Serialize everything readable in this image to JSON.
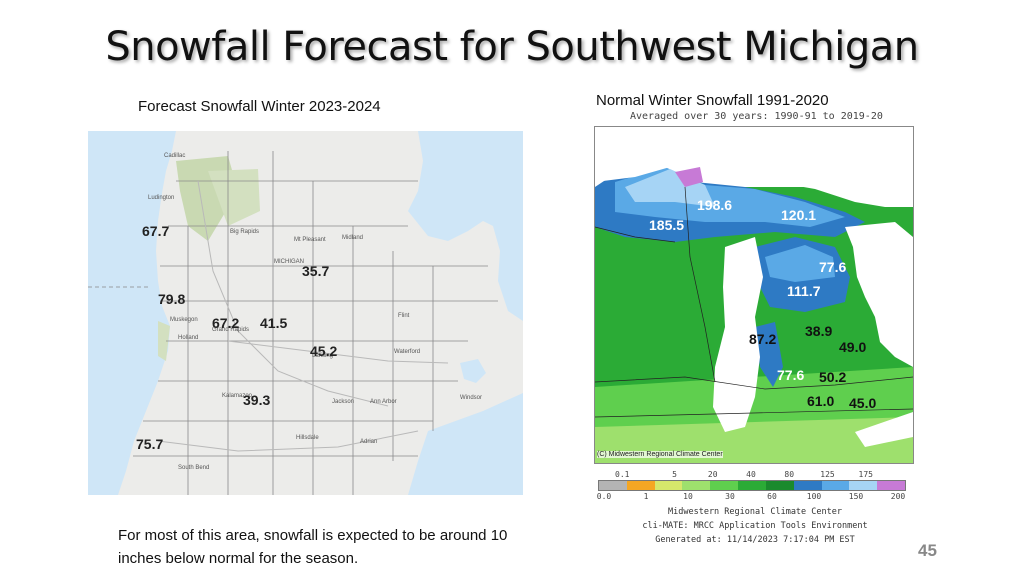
{
  "title": "Snowfall Forecast for Southwest Michigan",
  "left_map": {
    "caption": "Forecast Snowfall Winter 2023-2024",
    "labels": [
      "67.7",
      "35.7",
      "79.8",
      "67.2",
      "41.5",
      "45.2",
      "39.3",
      "75.7"
    ],
    "places": [
      "Cadillac",
      "Ludington",
      "Big Rapids",
      "Mt Pleasant",
      "Midland",
      "Muskegon",
      "Holland",
      "Grand Rapids",
      "Lansing",
      "Flint",
      "Kalamazoo",
      "Jackson",
      "Ann Arbor",
      "Hillsdale",
      "Adrian",
      "South Bend",
      "Windsor",
      "Waterford",
      "MICHIGAN"
    ]
  },
  "right_map": {
    "caption": "Normal Winter Snowfall 1991-2020",
    "subcaption": "Averaged over 30 years: 1990-91 to 2019-20",
    "watermark": "(C) Midwestern Regional Climate Center",
    "labels": [
      "198.6",
      "185.5",
      "120.1",
      "77.6",
      "111.7",
      "87.2",
      "38.9",
      "49.0",
      "77.6",
      "50.2",
      "61.0",
      "45.0"
    ],
    "legend": {
      "top": [
        "0.1",
        "5",
        "20",
        "40",
        "80",
        "125",
        "175"
      ],
      "bottom": [
        "0.0",
        "1",
        "10",
        "30",
        "60",
        "100",
        "150",
        "200"
      ],
      "colors": [
        "#b4b4b4",
        "#f5a623",
        "#d6e76b",
        "#9ee06d",
        "#5fcf4e",
        "#2bab36",
        "#1a8a2d",
        "#2e7ac4",
        "#5aa9e6",
        "#a6d4f5",
        "#c77ad6"
      ]
    },
    "credits": [
      "Midwestern Regional Climate Center",
      "cli-MATE: MRCC Application Tools Environment",
      "Generated at: 11/14/2023 7:17:04 PM EST"
    ]
  },
  "bottom_text": "For most of this area, snowfall is expected to be around 10 inches below normal for the season.",
  "page_number": "45",
  "colors": {
    "lake": "#cfe6f7",
    "land": "#ececea",
    "forest": "#c9d9b2"
  }
}
